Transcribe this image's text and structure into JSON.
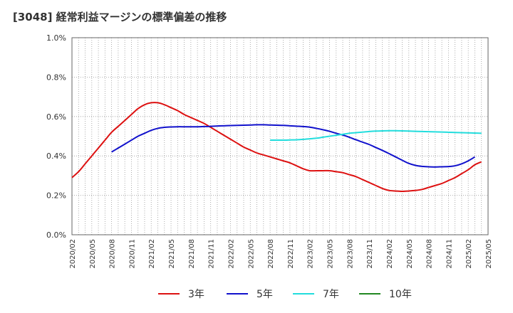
{
  "chart_data": {
    "type": "line",
    "title": "[3048]  経常利益マージンの標準偏差の推移",
    "xlabel": "",
    "ylabel": "",
    "ylim": [
      0,
      1.0
    ],
    "y_ticks": [
      "0.0%",
      "0.2%",
      "0.4%",
      "0.6%",
      "0.8%",
      "1.0%"
    ],
    "x_ticks": [
      "2020/02",
      "2020/05",
      "2020/08",
      "2020/11",
      "2021/02",
      "2021/05",
      "2021/08",
      "2021/11",
      "2022/02",
      "2022/05",
      "2022/08",
      "2022/11",
      "2023/02",
      "2023/05",
      "2023/08",
      "2023/11",
      "2024/02",
      "2024/05",
      "2024/08",
      "2024/11",
      "2025/02",
      "2025/05"
    ],
    "grid": true,
    "legend_position": "bottom",
    "series": [
      {
        "name": "3年",
        "color": "#dd1111",
        "start_index": 0,
        "values": [
          0.29,
          0.32,
          0.36,
          0.4,
          0.44,
          0.48,
          0.52,
          0.55,
          0.58,
          0.61,
          0.64,
          0.66,
          0.67,
          0.67,
          0.66,
          0.645,
          0.63,
          0.61,
          0.595,
          0.58,
          0.565,
          0.545,
          0.525,
          0.505,
          0.485,
          0.465,
          0.445,
          0.43,
          0.415,
          0.405,
          0.395,
          0.385,
          0.375,
          0.365,
          0.35,
          0.335,
          0.325,
          0.325,
          0.325,
          0.325,
          0.32,
          0.315,
          0.305,
          0.295,
          0.28,
          0.265,
          0.25,
          0.235,
          0.225,
          0.222,
          0.22,
          0.222,
          0.225,
          0.23,
          0.24,
          0.25,
          0.26,
          0.275,
          0.29,
          0.31,
          0.33,
          0.355,
          0.37
        ]
      },
      {
        "name": "5年",
        "color": "#1111cc",
        "start_index": 6,
        "values": [
          0.42,
          0.44,
          0.46,
          0.48,
          0.5,
          0.515,
          0.53,
          0.54,
          0.545,
          0.547,
          0.548,
          0.548,
          0.548,
          0.548,
          0.549,
          0.55,
          0.552,
          0.553,
          0.554,
          0.555,
          0.556,
          0.557,
          0.558,
          0.558,
          0.557,
          0.556,
          0.555,
          0.553,
          0.551,
          0.549,
          0.546,
          0.54,
          0.533,
          0.525,
          0.515,
          0.506,
          0.495,
          0.482,
          0.47,
          0.458,
          0.443,
          0.428,
          0.412,
          0.395,
          0.378,
          0.362,
          0.352,
          0.347,
          0.345,
          0.344,
          0.345,
          0.346,
          0.35,
          0.36,
          0.375,
          0.395
        ]
      },
      {
        "name": "7年",
        "color": "#22dddd",
        "start_index": 30,
        "values": [
          0.48,
          0.48,
          0.48,
          0.481,
          0.482,
          0.484,
          0.487,
          0.49,
          0.495,
          0.5,
          0.505,
          0.51,
          0.515,
          0.518,
          0.521,
          0.524,
          0.526,
          0.527,
          0.528,
          0.528,
          0.527,
          0.526,
          0.525,
          0.524,
          0.523,
          0.522,
          0.521,
          0.52,
          0.519,
          0.518,
          0.517,
          0.516,
          0.515
        ]
      },
      {
        "name": "10年",
        "color": "#228822",
        "start_index": 0,
        "values": []
      }
    ]
  }
}
